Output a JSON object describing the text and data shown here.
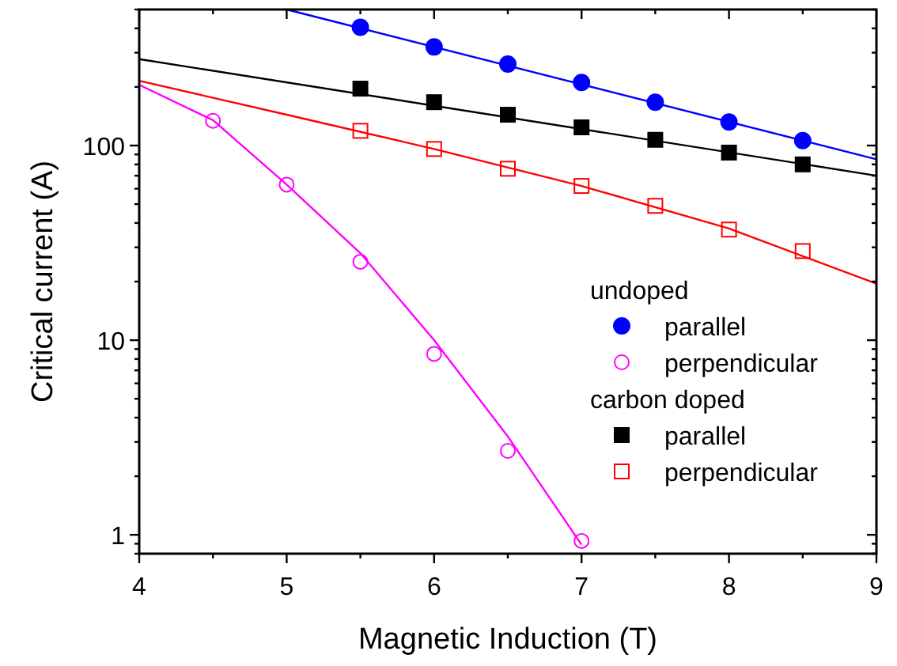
{
  "chart_data": {
    "type": "scatter",
    "xlabel": "Magnetic Induction (T)",
    "ylabel": "Critical current (A)",
    "log": "y",
    "xlim": [
      4,
      9
    ],
    "ylim": [
      0.8,
      500
    ],
    "xticks": [
      4,
      {
        "value": 4.5,
        "label": null
      },
      5,
      {
        "value": 5.5,
        "label": null
      },
      6,
      {
        "value": 6.5,
        "label": null
      },
      7,
      {
        "value": 7.5,
        "label": null
      },
      8,
      {
        "value": 8.5,
        "label": null
      },
      9
    ],
    "yticks": [
      {
        "value": 0.8,
        "label": null
      },
      {
        "value": 0.9,
        "label": null
      },
      1,
      {
        "value": 2,
        "label": null
      },
      {
        "value": 3,
        "label": null
      },
      {
        "value": 4,
        "label": null
      },
      {
        "value": 5,
        "label": null
      },
      {
        "value": 6,
        "label": null
      },
      {
        "value": 7,
        "label": null
      },
      {
        "value": 8,
        "label": null
      },
      {
        "value": 9,
        "label": null
      },
      10,
      {
        "value": 20,
        "label": null
      },
      {
        "value": 30,
        "label": null
      },
      {
        "value": 40,
        "label": null
      },
      {
        "value": 50,
        "label": null
      },
      {
        "value": 60,
        "label": null
      },
      {
        "value": 70,
        "label": null
      },
      {
        "value": 80,
        "label": null
      },
      {
        "value": 90,
        "label": null
      },
      100,
      {
        "value": 200,
        "label": null
      },
      {
        "value": 300,
        "label": null
      },
      {
        "value": 400,
        "label": null
      },
      {
        "value": 500,
        "label": null
      }
    ],
    "grid": false,
    "legend": "right",
    "annotations": [
      "undoped",
      "carbon doped"
    ],
    "series": [
      {
        "type": "line",
        "color": "#0000ff",
        "x": [
          5,
          9
        ],
        "values": [
          500,
          85
        ]
      },
      {
        "type": "line",
        "color": "#000000",
        "x": [
          4,
          9
        ],
        "values": [
          278,
          70
        ]
      },
      {
        "type": "line",
        "color": "#ff0000",
        "x": [
          4,
          5,
          6,
          7,
          8,
          9
        ],
        "values": [
          215,
          144,
          96,
          62,
          37.5,
          19.5
        ]
      },
      {
        "type": "line",
        "color": "#ff00ff",
        "x": [
          4,
          4.5,
          5,
          5.5,
          6,
          6.5,
          7
        ],
        "values": [
          205,
          135,
          63,
          28,
          10,
          3.2,
          0.89
        ]
      },
      {
        "name": "parallel",
        "color": "#0000ff",
        "marker": "circle",
        "x": [
          5.5,
          6,
          6.5,
          7,
          7.5,
          8,
          8.5
        ],
        "values": [
          405,
          321,
          262,
          211,
          167,
          132,
          106
        ]
      },
      {
        "name": "perpendicular",
        "color": "#ff00ff",
        "marker": "circle",
        "x": [
          4.5,
          5,
          5.5,
          6,
          6.5,
          7
        ],
        "values": [
          134,
          63,
          25.3,
          8.5,
          2.7,
          0.93
        ]
      },
      {
        "name": "parallel",
        "color": "#000000",
        "marker": "square",
        "x": [
          5.5,
          6,
          6.5,
          7,
          7.5,
          8,
          8.5
        ],
        "values": [
          196,
          167,
          144,
          124,
          107,
          92,
          80
        ]
      },
      {
        "name": "perpendicular",
        "color": "#ff0000",
        "marker": "square",
        "x": [
          5.5,
          6,
          6.5,
          7,
          7.5,
          8,
          8.5
        ],
        "values": [
          119,
          96,
          76,
          62,
          49,
          37,
          28.7
        ]
      }
    ]
  }
}
